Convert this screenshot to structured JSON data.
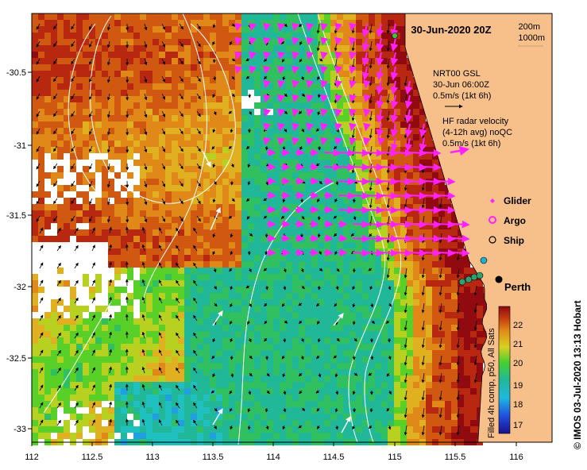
{
  "title": "30-Jun-2020 20Z",
  "depth_labels": [
    "200m",
    "1000m"
  ],
  "vector_legend": {
    "model_lines": [
      "NRT00 GSL",
      "30-Jun 06:00Z",
      "0.5m/s (1kt 6h)"
    ],
    "radar_lines": [
      "HF radar velocity",
      "(4-12h avg) noQC",
      "0.5m/s (1kt 6h)"
    ]
  },
  "symbol_legend": [
    {
      "label": "Glider",
      "symbol": "magenta-diamond"
    },
    {
      "label": "Argo",
      "symbol": "magenta-ring"
    },
    {
      "label": "Ship",
      "symbol": "black-ring"
    }
  ],
  "city": "Perth",
  "axes": {
    "x_ticks": [
      "112",
      "112.5",
      "113",
      "113.5",
      "114",
      "114.5",
      "115",
      "115.5",
      "116"
    ],
    "y_ticks": [
      "-30.5",
      "-31",
      "-31.5",
      "-32",
      "-32.5",
      "-33"
    ]
  },
  "colorbar": {
    "ticks": [
      "22",
      "21",
      "20",
      "19",
      "18",
      "17"
    ],
    "label": "Filled 4h comp, p50, All Sats"
  },
  "credit": "© IMOS 03-Jul-2020 13:13 Hobart",
  "colors": {
    "land": "#f7c08a",
    "cloud": "#ffffff",
    "model_vector": "#000000",
    "radar_vector": "#ff22ff",
    "contour": "#ffffff"
  }
}
